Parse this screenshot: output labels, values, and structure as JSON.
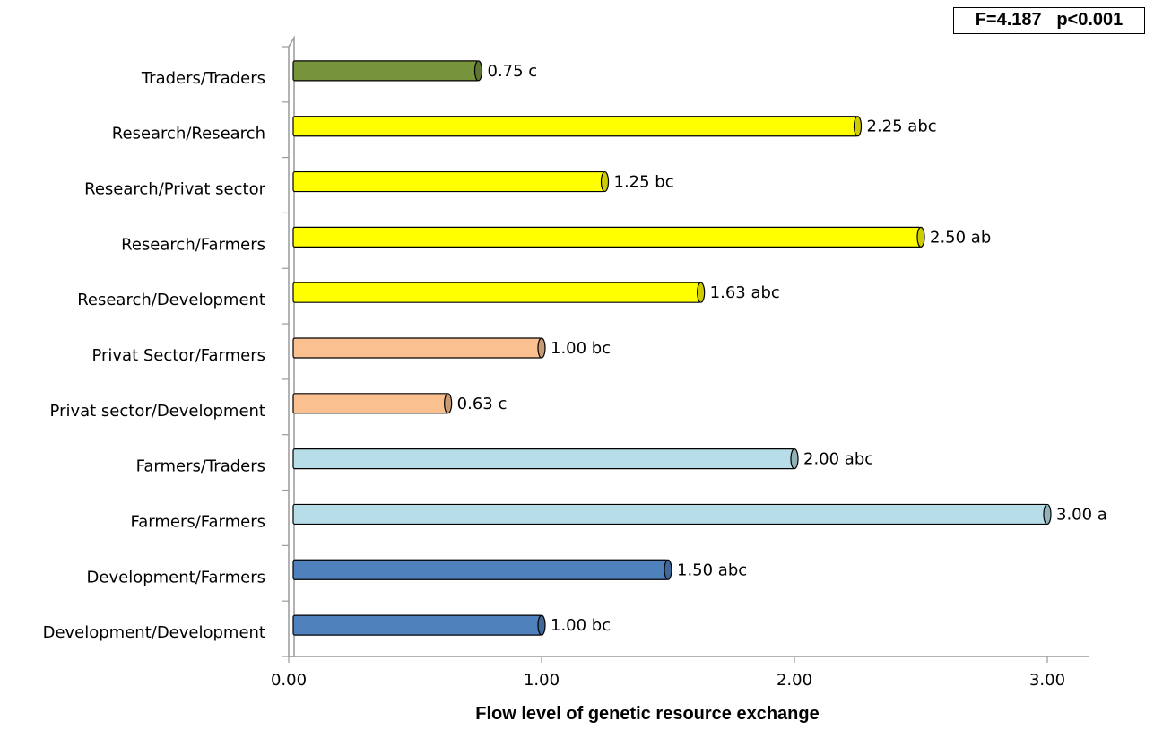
{
  "chart_data": {
    "type": "bar",
    "orientation": "horizontal",
    "xlabel": "Flow level of genetic resource exchange",
    "xlim": [
      0,
      3.2
    ],
    "xticks": [
      0,
      1,
      2,
      3
    ],
    "xtick_labels": [
      "0.00",
      "1.00",
      "2.00",
      "3.00"
    ],
    "annotation": "F=4.187   p<0.001",
    "grid": false,
    "legend": "none",
    "bars": [
      {
        "category": "Traders/Traders",
        "value": 0.75,
        "label": "0.75 c",
        "color": "#77933c"
      },
      {
        "category": "Research/Research",
        "value": 2.25,
        "label": "2.25 abc",
        "color": "#ffff00"
      },
      {
        "category": "Research/Privat sector",
        "value": 1.25,
        "label": "1.25 bc",
        "color": "#ffff00"
      },
      {
        "category": "Research/Farmers",
        "value": 2.5,
        "label": "2.50 ab",
        "color": "#ffff00"
      },
      {
        "category": "Research/Development",
        "value": 1.63,
        "label": "1.63 abc",
        "color": "#ffff00"
      },
      {
        "category": "Privat Sector/Farmers",
        "value": 1.0,
        "label": "1.00 bc",
        "color": "#fac090"
      },
      {
        "category": "Privat sector/Development",
        "value": 0.63,
        "label": "0.63 c",
        "color": "#fac090"
      },
      {
        "category": "Farmers/Traders",
        "value": 2.0,
        "label": "2.00 abc",
        "color": "#b7dee8"
      },
      {
        "category": "Farmers/Farmers",
        "value": 3.0,
        "label": "3.00 a",
        "color": "#b7dee8"
      },
      {
        "category": "Development/Farmers",
        "value": 1.5,
        "label": "1.50 abc",
        "color": "#4f81bd"
      },
      {
        "category": "Development/Development",
        "value": 1.0,
        "label": "1.00 bc",
        "color": "#4f81bd"
      }
    ]
  }
}
